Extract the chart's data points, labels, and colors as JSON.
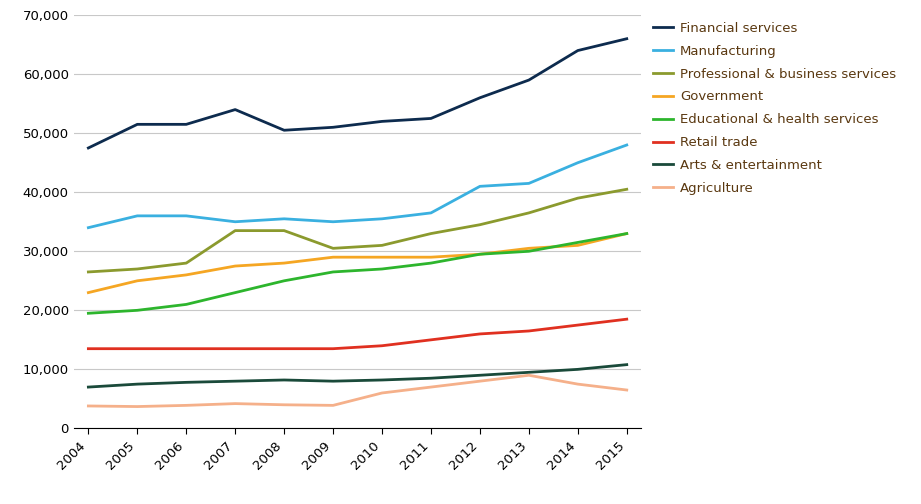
{
  "years": [
    2004,
    2005,
    2006,
    2007,
    2008,
    2009,
    2010,
    2011,
    2012,
    2013,
    2014,
    2015
  ],
  "series": [
    {
      "label": "Financial services",
      "values": [
        47500,
        51500,
        51500,
        54000,
        50500,
        51000,
        52000,
        52500,
        56000,
        59000,
        64000,
        66000
      ],
      "color": "#0d2b4e",
      "linewidth": 2.0
    },
    {
      "label": "Manufacturing",
      "values": [
        34000,
        36000,
        36000,
        35000,
        35500,
        35000,
        35500,
        36500,
        41000,
        41500,
        45000,
        48000
      ],
      "color": "#3ab0e0",
      "linewidth": 2.0
    },
    {
      "label": "Professional & business services",
      "values": [
        26500,
        27000,
        28000,
        33500,
        33500,
        30500,
        31000,
        33000,
        34500,
        36500,
        39000,
        40500
      ],
      "color": "#8b9a2e",
      "linewidth": 2.0
    },
    {
      "label": "Government",
      "values": [
        23000,
        25000,
        26000,
        27500,
        28000,
        29000,
        29000,
        29000,
        29500,
        30500,
        31000,
        33000
      ],
      "color": "#f5a623",
      "linewidth": 2.0
    },
    {
      "label": "Educational & health services",
      "values": [
        19500,
        20000,
        21000,
        23000,
        25000,
        26500,
        27000,
        28000,
        29500,
        30000,
        31500,
        33000
      ],
      "color": "#2db52d",
      "linewidth": 2.0
    },
    {
      "label": "Retail trade",
      "values": [
        13500,
        13500,
        13500,
        13500,
        13500,
        13500,
        14000,
        15000,
        16000,
        16500,
        17500,
        18500
      ],
      "color": "#e03020",
      "linewidth": 2.0
    },
    {
      "label": "Arts & entertainment",
      "values": [
        7000,
        7500,
        7800,
        8000,
        8200,
        8000,
        8200,
        8500,
        9000,
        9500,
        10000,
        10800
      ],
      "color": "#1a4a3a",
      "linewidth": 2.0
    },
    {
      "label": "Agriculture",
      "values": [
        3800,
        3700,
        3900,
        4200,
        4000,
        3900,
        6000,
        7000,
        8000,
        9000,
        7500,
        6500
      ],
      "color": "#f5b08a",
      "linewidth": 2.0
    }
  ],
  "ylim": [
    0,
    70000
  ],
  "yticks": [
    0,
    10000,
    20000,
    30000,
    40000,
    50000,
    60000,
    70000
  ],
  "ytick_labels": [
    "0",
    "10,000",
    "20,000",
    "30,000",
    "40,000",
    "50,000",
    "60,000",
    "70,000"
  ],
  "grid_color": "#c8c8c8",
  "background_color": "#ffffff",
  "legend_text_color": "#5a3810",
  "legend_fontsize": 9.5,
  "axis_fontsize": 9.5,
  "figsize": [
    9.21,
    5.04
  ],
  "dpi": 100
}
